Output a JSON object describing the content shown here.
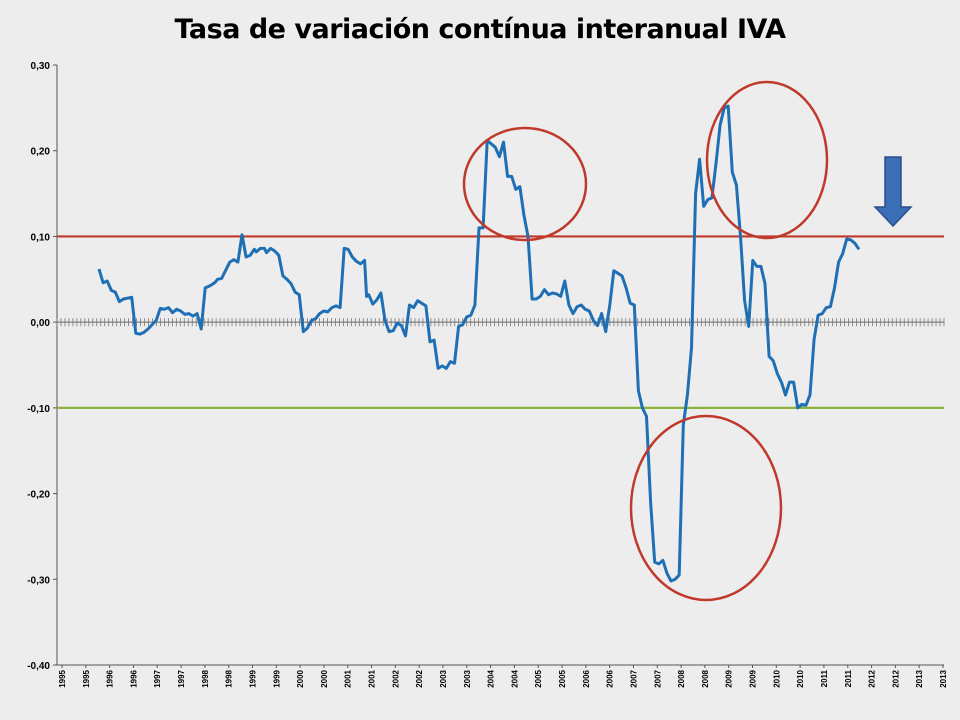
{
  "chart_data": {
    "type": "line",
    "title": "Tasa de variación contínua interanual IVA",
    "xlabel": "",
    "ylabel": "",
    "ylim": [
      -0.4,
      0.3
    ],
    "grid": false,
    "legend": "none",
    "y_ticks": [
      "0,30",
      "0,20",
      "0,10",
      "0,00",
      "-0,10",
      "-0,20",
      "-0,30",
      "-0,40"
    ],
    "y_tick_values": [
      0.3,
      0.2,
      0.1,
      0.0,
      -0.1,
      -0.2,
      -0.3,
      -0.4
    ],
    "x_ticks": [
      "1995",
      "1995",
      "1996",
      "1996",
      "1997",
      "1997",
      "1998",
      "1998",
      "1999",
      "1999",
      "2000",
      "2000",
      "2001",
      "2001",
      "2002",
      "2002",
      "2003",
      "2003",
      "2004",
      "2004",
      "2005",
      "2005",
      "2006",
      "2006",
      "2007",
      "2007",
      "2008",
      "2008",
      "2009",
      "2009",
      "2010",
      "2010",
      "2011",
      "2011",
      "2012",
      "2012",
      "2013",
      "2013"
    ],
    "reference_lines": [
      {
        "y": 0.1,
        "color": "#c0392b"
      },
      {
        "y": -0.1,
        "color": "#8db33a"
      }
    ],
    "series": [
      {
        "color": "#1f6fb5",
        "x": [
          1995.0,
          1995.1,
          1995.2,
          1995.3,
          1995.4,
          1995.5,
          1995.6,
          1995.8,
          1995.9,
          1996.0,
          1996.1,
          1996.2,
          1996.4,
          1996.5,
          1996.6,
          1996.7,
          1996.8,
          1996.9,
          1997.0,
          1997.1,
          1997.2,
          1997.3,
          1997.4,
          1997.5,
          1997.6,
          1997.7,
          1997.8,
          1997.85,
          1997.9,
          1998.0,
          1998.2,
          1998.3,
          1998.4,
          1998.5,
          1998.6,
          1998.7,
          1998.8,
          1998.85,
          1998.95,
          1999.05,
          1999.1,
          1999.2,
          1999.3,
          1999.4,
          1999.5,
          1999.6,
          1999.7,
          1999.8,
          1999.9,
          2000.0,
          2000.1,
          2000.2,
          2000.3,
          2000.4,
          2000.5,
          2000.6,
          2000.7,
          2000.8,
          2000.9,
          2001.0,
          2001.1,
          2001.2,
          2001.3,
          2001.4,
          2001.5,
          2001.55,
          2001.6,
          2001.7,
          2001.8,
          2001.9,
          2002.0,
          2002.1,
          2002.2,
          2002.3,
          2002.4,
          2002.5,
          2002.6,
          2002.7,
          2002.8,
          2002.9,
          2003.0,
          2003.1,
          2003.2,
          2003.3,
          2003.4,
          2003.5,
          2003.6,
          2003.7,
          2003.8,
          2003.9,
          2004.0,
          2004.1,
          2004.2,
          2004.3,
          2004.4,
          2004.5,
          2004.6,
          2004.7,
          2004.8,
          2004.9,
          2005.0,
          2005.1,
          2005.2,
          2005.3,
          2005.4,
          2005.5,
          2005.6,
          2005.7,
          2005.8,
          2005.9,
          2006.0,
          2006.1,
          2006.2,
          2006.3,
          2006.4,
          2006.5,
          2006.6,
          2006.7,
          2006.8,
          2006.9,
          2007.0,
          2007.1,
          2007.2,
          2007.3,
          2007.4,
          2007.5,
          2007.6,
          2007.7,
          2007.8,
          2007.9,
          2008.0,
          2008.1,
          2008.2,
          2008.3,
          2008.4,
          2008.5,
          2008.6,
          2008.7,
          2008.8,
          2008.9,
          2009.0,
          2009.1,
          2009.2,
          2009.3,
          2009.4,
          2009.5,
          2009.6,
          2009.7,
          2009.8,
          2009.9,
          2010.0,
          2010.1,
          2010.2,
          2010.3,
          2010.4,
          2010.5,
          2010.6,
          2010.7,
          2010.8,
          2010.9,
          2011.0,
          2011.1,
          2011.2,
          2011.3,
          2011.4,
          2011.5,
          2011.6,
          2011.7,
          2011.8,
          2011.9,
          2012.0,
          2012.1,
          2012.2,
          2012.3,
          2012.4,
          2012.5,
          2012.6,
          2012.7,
          2012.8,
          2012.9,
          2013.0,
          2013.1,
          2013.2,
          2013.3,
          2013.4,
          2013.5,
          2013.6
        ],
        "values": [
          0.062,
          0.046,
          0.048,
          0.037,
          0.035,
          0.024,
          0.027,
          0.029,
          -0.013,
          -0.014,
          -0.012,
          -0.008,
          0.002,
          0.016,
          0.015,
          0.017,
          0.011,
          0.015,
          0.013,
          0.009,
          0.01,
          0.007,
          0.01,
          -0.008,
          0.04,
          0.042,
          0.045,
          0.047,
          0.05,
          0.051,
          0.07,
          0.073,
          0.07,
          0.102,
          0.076,
          0.078,
          0.085,
          0.082,
          0.086,
          0.086,
          0.081,
          0.086,
          0.083,
          0.078,
          0.054,
          0.05,
          0.045,
          0.035,
          0.032,
          -0.011,
          -0.007,
          0.002,
          0.004,
          0.01,
          0.013,
          0.012,
          0.017,
          0.019,
          0.017,
          0.086,
          0.085,
          0.076,
          0.071,
          0.068,
          0.072,
          0.03,
          0.032,
          0.021,
          0.026,
          0.034,
          0.002,
          -0.011,
          -0.01,
          -0.001,
          -0.004,
          -0.016,
          0.02,
          0.017,
          0.025,
          0.022,
          0.019,
          -0.023,
          -0.021,
          -0.054,
          -0.051,
          -0.054,
          -0.046,
          -0.048,
          -0.005,
          -0.003,
          0.006,
          0.008,
          0.02,
          0.11,
          0.11,
          0.212,
          0.208,
          0.204,
          0.193,
          0.21,
          0.17,
          0.17,
          0.155,
          0.158,
          0.125,
          0.1,
          0.027,
          0.027,
          0.03,
          0.038,
          0.032,
          0.034,
          0.033,
          0.03,
          0.048,
          0.02,
          0.01,
          0.018,
          0.02,
          0.015,
          0.013,
          0.002,
          -0.004,
          0.01,
          -0.011,
          0.02,
          0.06,
          0.057,
          0.054,
          0.04,
          0.022,
          0.02,
          -0.08,
          -0.1,
          -0.11,
          -0.21,
          -0.28,
          -0.282,
          -0.278,
          -0.293,
          -0.302,
          -0.3,
          -0.295,
          -0.12,
          -0.085,
          -0.03,
          0.15,
          0.19,
          0.135,
          0.143,
          0.145,
          0.185,
          0.23,
          0.25,
          0.252,
          0.175,
          0.16,
          0.1,
          0.025,
          -0.005,
          0.072,
          0.065,
          0.065,
          0.045,
          -0.04,
          -0.045,
          -0.06,
          -0.07,
          -0.085,
          -0.07,
          -0.07,
          -0.1,
          -0.096,
          -0.097,
          -0.085,
          -0.02,
          0.008,
          0.01,
          0.017,
          0.018,
          0.04,
          0.07,
          0.08,
          0.097,
          0.096,
          0.092,
          0.085
        ]
      }
    ],
    "annotations": [
      {
        "shape": "ellipse",
        "color": "#c0392b",
        "around": "2004-2005 peak"
      },
      {
        "shape": "ellipse",
        "color": "#c0392b",
        "around": "2009-2010 peak"
      },
      {
        "shape": "ellipse",
        "color": "#c0392b",
        "around": "2008 trough"
      },
      {
        "shape": "arrow-down",
        "color": "#3a6fb7",
        "around": "2012 latest value"
      }
    ]
  }
}
